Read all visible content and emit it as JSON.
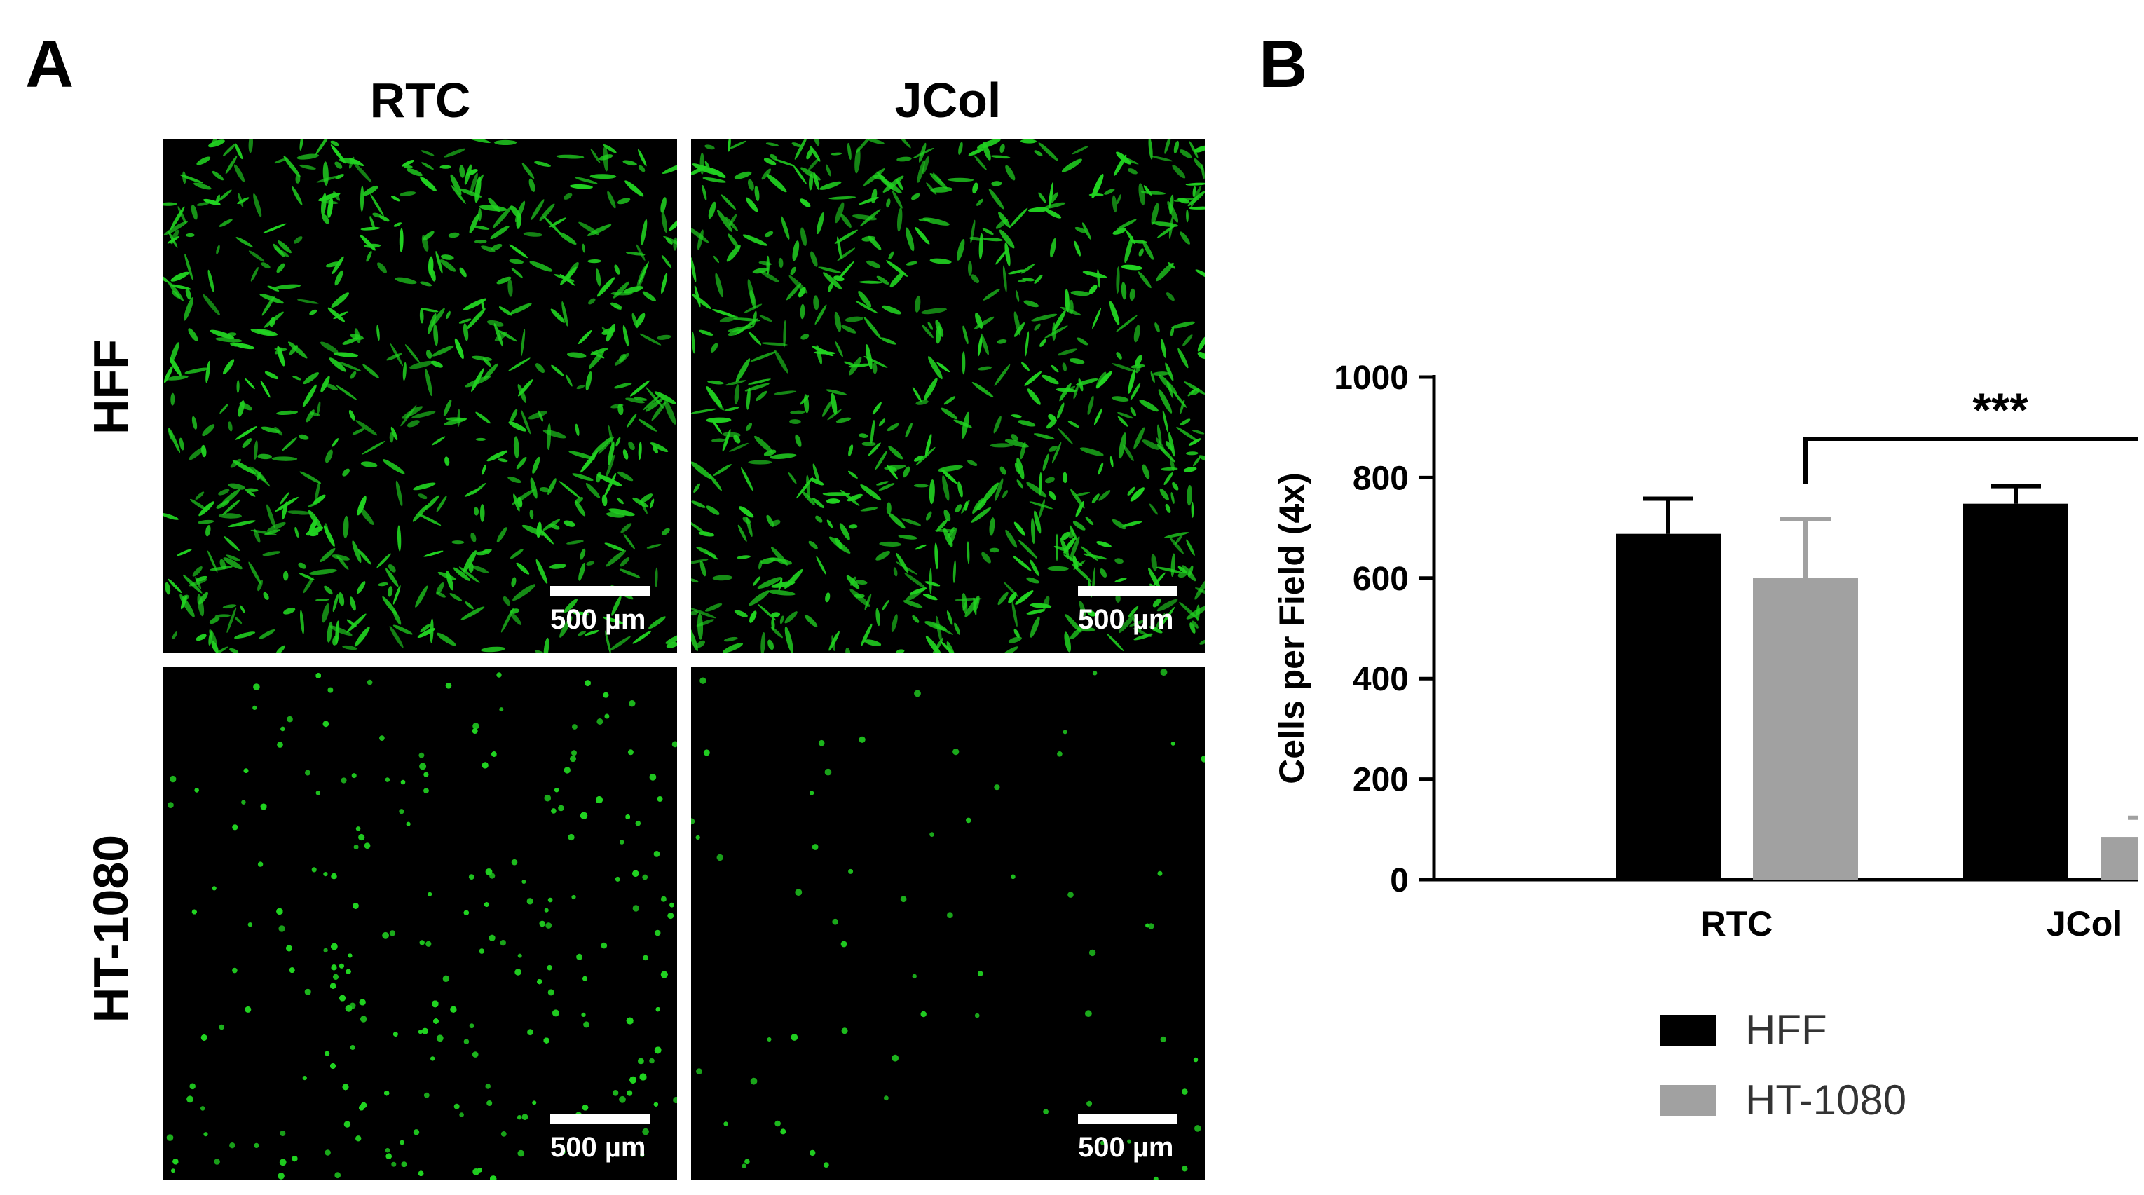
{
  "panel_a": {
    "letter": "A",
    "columns": [
      "RTC",
      "JCol"
    ],
    "rows": [
      "HFF",
      "HT-1080"
    ],
    "scale_bar_label": "500 µm",
    "image_colors": {
      "cells": "#21d321",
      "background": "#000000"
    }
  },
  "panel_b": {
    "letter": "B"
  },
  "chart_data": {
    "type": "bar",
    "categories": [
      "RTC",
      "JCol"
    ],
    "series": [
      {
        "name": "HFF",
        "values": [
          688,
          748
        ],
        "errors": [
          70,
          35
        ],
        "color": "#000000"
      },
      {
        "name": "HT-1080",
        "values": [
          600,
          85
        ],
        "errors": [
          118,
          38
        ],
        "color": "#a1a1a1"
      }
    ],
    "ylabel": "Cells per Field (4x)",
    "ylim": [
      0,
      1000
    ],
    "yticks": [
      0,
      200,
      400,
      600,
      800,
      1000
    ],
    "significance": {
      "label": "***",
      "between": [
        "RTC HT-1080",
        "JCol HT-1080"
      ]
    },
    "legend_position": "bottom-right"
  }
}
